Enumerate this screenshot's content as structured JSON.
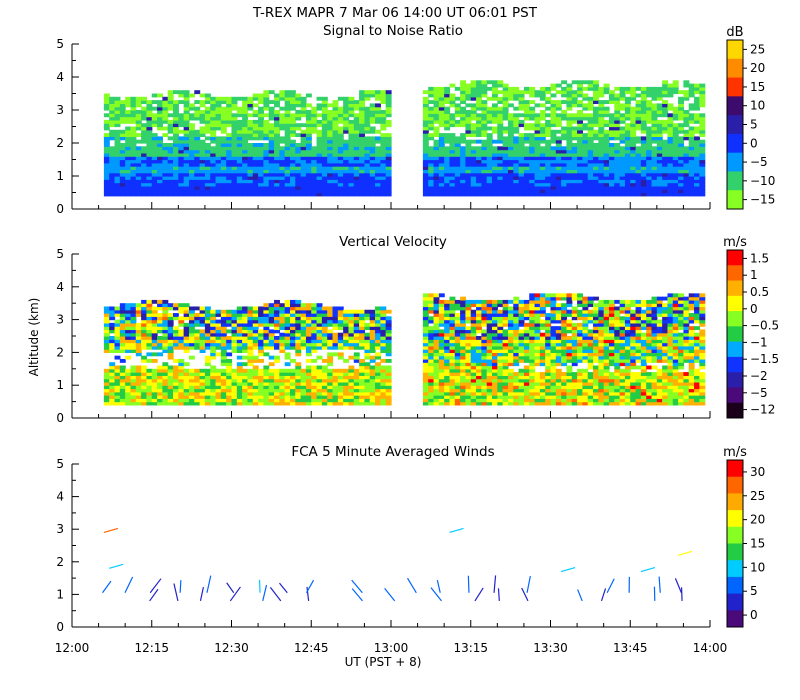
{
  "header": {
    "title": "T-REX   MAPR   7 Mar 06   14:00 UT   06:01   PST"
  },
  "axes": {
    "y_label": "Altitude (km)",
    "x_label": "UT  (PST + 8)",
    "x_ticks": [
      "12:00",
      "12:15",
      "12:30",
      "12:45",
      "13:00",
      "13:15",
      "13:30",
      "13:45",
      "14:00"
    ],
    "y_ticks": [
      "0",
      "1",
      "2",
      "3",
      "4",
      "5"
    ]
  },
  "chart_data": [
    {
      "type": "heatmap",
      "title": "Signal to Noise Ratio",
      "xlabel": "",
      "ylabel": "",
      "xlim": [
        "12:00",
        "14:00"
      ],
      "ylim": [
        0,
        5
      ],
      "data_gap": [
        "13:00",
        "13:07"
      ],
      "colorbar": {
        "unit": "dB",
        "ticks": [
          "25",
          "20",
          "15",
          "10",
          "5",
          "0",
          "−5",
          "−10",
          "−15"
        ],
        "colors": [
          "#ffd700",
          "#ff8c00",
          "#ff3300",
          "#3d0a6e",
          "#2a1fa8",
          "#1030ff",
          "#0099ff",
          "#33d16b",
          "#88ff22"
        ]
      }
    },
    {
      "type": "heatmap",
      "title": "Vertical Velocity",
      "xlabel": "",
      "ylabel": "Altitude (km)",
      "xlim": [
        "12:00",
        "14:00"
      ],
      "ylim": [
        0,
        5
      ],
      "data_gap": [
        "13:00",
        "13:07"
      ],
      "colorbar": {
        "unit": "m/s",
        "ticks": [
          "1.5",
          "1",
          "0.5",
          "0",
          "−0.5",
          "−1",
          "−1.5",
          "−2",
          "−5",
          "−12"
        ],
        "colors": [
          "#ff0000",
          "#ff6600",
          "#ffb000",
          "#ffff00",
          "#88ff22",
          "#22cc44",
          "#00aaff",
          "#1133ff",
          "#2a1fa8",
          "#4a0a7a",
          "#1a001a"
        ]
      }
    },
    {
      "type": "scatter",
      "title": "FCA 5 Minute Averaged Winds",
      "xlabel": "UT  (PST + 8)",
      "ylabel": "",
      "xlim": [
        "12:00",
        "14:00"
      ],
      "ylim": [
        0,
        5
      ],
      "colorbar": {
        "unit": "m/s",
        "ticks": [
          "30",
          "25",
          "20",
          "15",
          "10",
          "5",
          "0"
        ],
        "colors": [
          "#ff0000",
          "#ff6600",
          "#ffaa00",
          "#ffff00",
          "#88ff22",
          "#22cc44",
          "#00ccff",
          "#0066ff",
          "#2222cc",
          "#4a0a7a"
        ]
      }
    }
  ]
}
